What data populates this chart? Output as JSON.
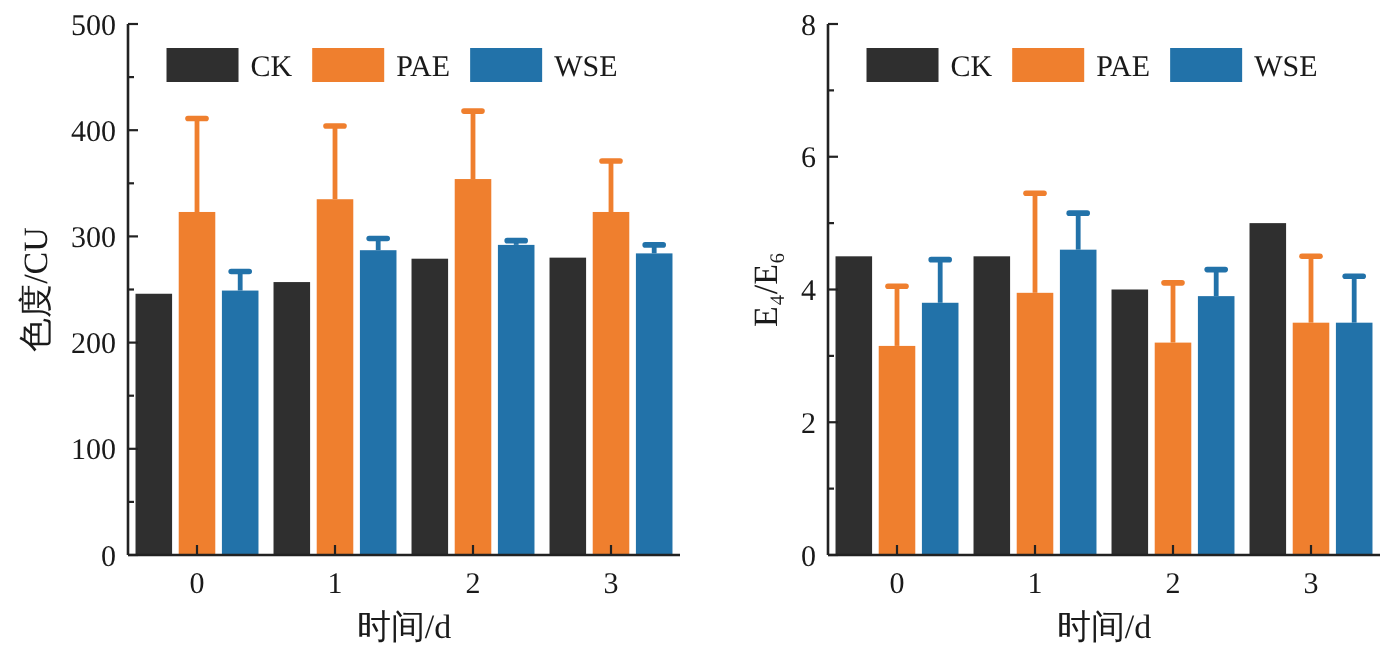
{
  "chart_data": [
    {
      "type": "bar",
      "categories": [
        "0",
        "1",
        "2",
        "3"
      ],
      "xlabel": "时间/d",
      "ylabel": "色度/CU",
      "ylim": [
        0,
        500
      ],
      "yticks": [
        0,
        {
          "value": 50,
          "label": null
        },
        100,
        {
          "value": 150,
          "label": null
        },
        200,
        {
          "value": 250,
          "label": null
        },
        300,
        {
          "value": 350,
          "label": null
        },
        400,
        {
          "value": 450,
          "label": null
        },
        500
      ],
      "legend": "top",
      "series": [
        {
          "name": "CK",
          "color": "#2f2f2f",
          "values": [
            246,
            257,
            279,
            280
          ]
        },
        {
          "name": "PAE",
          "color": "#ef7f2e",
          "values": [
            323,
            335,
            354,
            323
          ],
          "errors": [
            [
              323,
              411
            ],
            [
              335,
              404
            ],
            [
              354,
              418
            ],
            [
              323,
              371
            ]
          ]
        },
        {
          "name": "WSE",
          "color": "#2272a9",
          "values": [
            249,
            287,
            292,
            284
          ],
          "errors": [
            [
              249,
              267
            ],
            [
              287,
              298
            ],
            [
              292,
              296
            ],
            [
              284,
              292
            ]
          ]
        }
      ]
    },
    {
      "type": "bar",
      "categories": [
        "0",
        "1",
        "2",
        "3"
      ],
      "xlabel": "时间/d",
      "ylabel": "E₄/E₆",
      "ylim": [
        0,
        8
      ],
      "yticks": [
        0,
        {
          "value": 1,
          "label": null
        },
        2,
        {
          "value": 3,
          "label": null
        },
        4,
        {
          "value": 5,
          "label": null
        },
        6,
        {
          "value": 7,
          "label": null
        },
        8
      ],
      "legend": "top",
      "series": [
        {
          "name": "CK",
          "color": "#2f2f2f",
          "values": [
            4.5,
            4.5,
            4.0,
            5.0
          ]
        },
        {
          "name": "PAE",
          "color": "#ef7f2e",
          "values": [
            3.15,
            3.95,
            3.2,
            3.5
          ],
          "errors": [
            [
              3.15,
              4.05
            ],
            [
              3.95,
              5.45
            ],
            [
              3.2,
              4.1
            ],
            [
              3.5,
              4.5
            ]
          ]
        },
        {
          "name": "WSE",
          "color": "#2272a9",
          "values": [
            3.8,
            4.6,
            3.9,
            3.5
          ],
          "errors": [
            [
              3.8,
              4.45
            ],
            [
              4.6,
              5.15
            ],
            [
              3.9,
              4.3
            ],
            [
              3.5,
              4.2
            ]
          ]
        }
      ]
    }
  ]
}
